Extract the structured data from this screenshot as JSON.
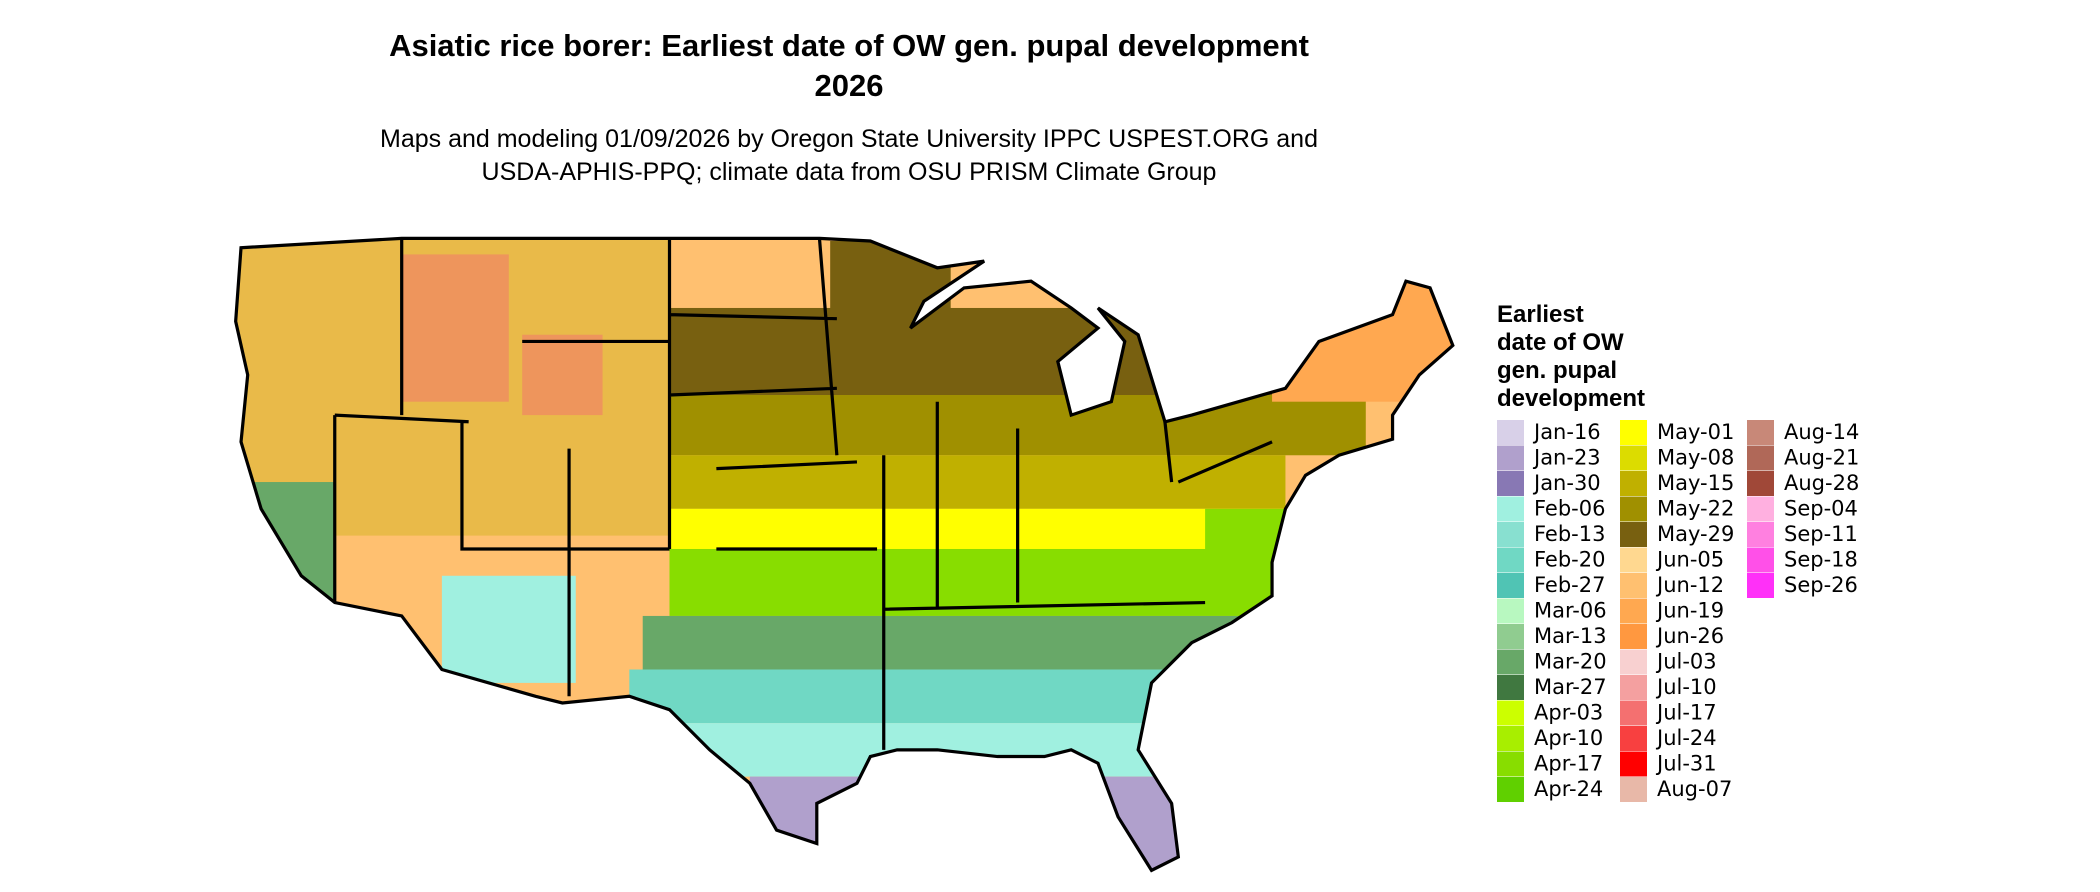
{
  "header": {
    "title": [
      "Asiatic rice borer: Earliest date of OW gen. pupal development",
      "2026"
    ],
    "subtitle": [
      "Maps and modeling 01/09/2026 by Oregon State University IPPC USPEST.ORG and",
      "USDA-APHIS-PPQ; climate data from OSU PRISM Climate Group"
    ]
  },
  "legend": {
    "title": [
      "Earliest",
      "date of OW",
      "gen. pupal",
      "development"
    ],
    "items": [
      {
        "label": "Jan-16",
        "color": "#d8d0e8"
      },
      {
        "label": "Jan-23",
        "color": "#b0a0cc"
      },
      {
        "label": "Jan-30",
        "color": "#8878b4"
      },
      {
        "label": "Feb-06",
        "color": "#a0f0e0"
      },
      {
        "label": "Feb-13",
        "color": "#88e0d0"
      },
      {
        "label": "Feb-20",
        "color": "#70d8c4"
      },
      {
        "label": "Feb-27",
        "color": "#50c4b4"
      },
      {
        "label": "Mar-06",
        "color": "#b8f8c0"
      },
      {
        "label": "Mar-13",
        "color": "#90cc90"
      },
      {
        "label": "Mar-20",
        "color": "#68a868"
      },
      {
        "label": "Mar-27",
        "color": "#407840"
      },
      {
        "label": "Apr-03",
        "color": "#ccff00"
      },
      {
        "label": "Apr-10",
        "color": "#a8ee00"
      },
      {
        "label": "Apr-17",
        "color": "#88dd00"
      },
      {
        "label": "Apr-24",
        "color": "#60d000"
      },
      {
        "label": "May-01",
        "color": "#ffff00"
      },
      {
        "label": "May-08",
        "color": "#dcdc00"
      },
      {
        "label": "May-15",
        "color": "#c0b000"
      },
      {
        "label": "May-22",
        "color": "#a09000"
      },
      {
        "label": "May-29",
        "color": "#786010"
      },
      {
        "label": "Jun-05",
        "color": "#ffd890"
      },
      {
        "label": "Jun-12",
        "color": "#ffc070"
      },
      {
        "label": "Jun-19",
        "color": "#ffa850"
      },
      {
        "label": "Jun-26",
        "color": "#ff9840"
      },
      {
        "label": "Jul-03",
        "color": "#f8d0d0"
      },
      {
        "label": "Jul-10",
        "color": "#f4a0a0"
      },
      {
        "label": "Jul-17",
        "color": "#f47070"
      },
      {
        "label": "Jul-24",
        "color": "#f84040"
      },
      {
        "label": "Jul-31",
        "color": "#ff0000"
      },
      {
        "label": "Aug-07",
        "color": "#e8b8a8"
      },
      {
        "label": "Aug-14",
        "color": "#c88878"
      },
      {
        "label": "Aug-21",
        "color": "#b06858"
      },
      {
        "label": "Aug-28",
        "color": "#a04838"
      },
      {
        "label": "Sep-04",
        "color": "#ffb0e0"
      },
      {
        "label": "Sep-11",
        "color": "#ff80e0"
      },
      {
        "label": "Sep-18",
        "color": "#ff50e8"
      },
      {
        "label": "Sep-26",
        "color": "#ff30f8"
      }
    ]
  }
}
